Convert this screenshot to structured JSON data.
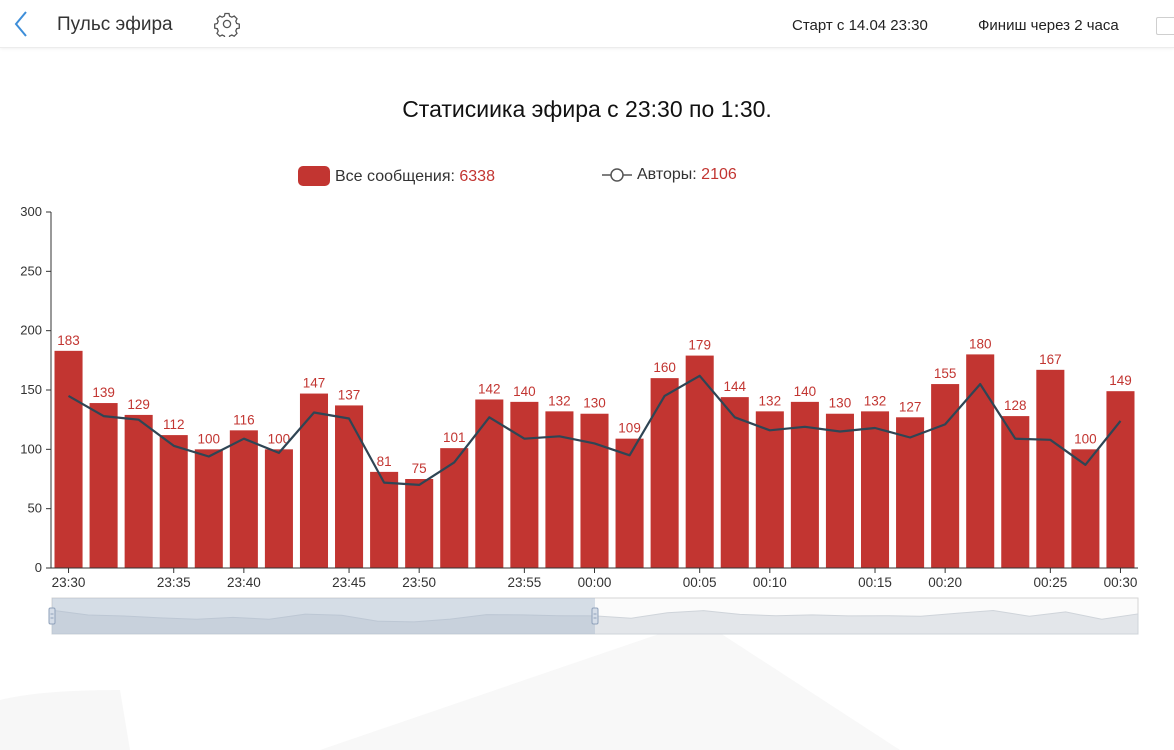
{
  "header": {
    "title": "Пульс эфира",
    "start_text": "Старт с 14.04 23:30",
    "finish_text": "Финиш через 2 часа"
  },
  "colors": {
    "bar": "#c23531",
    "line": "#2f4554",
    "back_arrow": "#3d8ed9"
  },
  "chart_data": {
    "type": "bar",
    "title": "Статисиика эфира с 23:30 по 1:30.",
    "legend": [
      {
        "label": "Все сообщения:",
        "value": "6338"
      },
      {
        "label": "Авторы:",
        "value": "2106"
      }
    ],
    "ylim": [
      0,
      300
    ],
    "yticks": [
      0,
      50,
      100,
      150,
      200,
      250,
      300
    ],
    "x_tick_labels": [
      "23:30",
      "23:35",
      "23:40",
      "23:45",
      "23:50",
      "23:55",
      "00:00",
      "00:05",
      "00:10",
      "00:15",
      "00:20",
      "00:25",
      "00:30"
    ],
    "series": [
      {
        "name": "Все сообщения",
        "type": "bar",
        "values": [
          183,
          139,
          129,
          112,
          100,
          116,
          100,
          147,
          137,
          81,
          75,
          101,
          142,
          140,
          132,
          130,
          109,
          160,
          179,
          144,
          132,
          140,
          130,
          132,
          127,
          155,
          180,
          128,
          167,
          100,
          149
        ]
      },
      {
        "name": "Авторы",
        "type": "line",
        "values": [
          145,
          128,
          125,
          103,
          94,
          109,
          97,
          131,
          126,
          72,
          70,
          89,
          127,
          109,
          111,
          105,
          95,
          145,
          162,
          127,
          116,
          119,
          115,
          118,
          110,
          121,
          155,
          109,
          108,
          87,
          124
        ]
      }
    ],
    "data_zoom": {
      "start": 0,
      "end": 0.5
    }
  }
}
